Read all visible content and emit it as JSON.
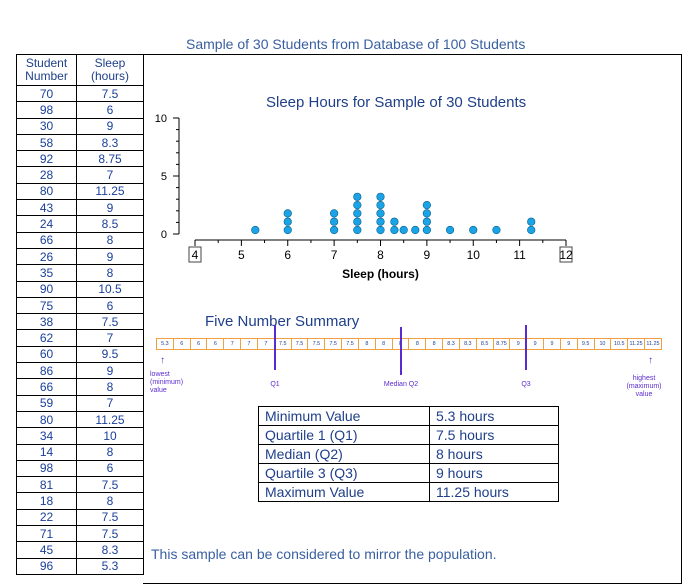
{
  "page_title": "Sample of 30 Students from Database of 100 Students",
  "student_table": {
    "headers": [
      "Student Number",
      "Sleep (hours)"
    ],
    "rows": [
      [
        "70",
        "7.5"
      ],
      [
        "98",
        "6"
      ],
      [
        "30",
        "9"
      ],
      [
        "58",
        "8.3"
      ],
      [
        "92",
        "8.75"
      ],
      [
        "28",
        "7"
      ],
      [
        "80",
        "11.25"
      ],
      [
        "43",
        "9"
      ],
      [
        "24",
        "8.5"
      ],
      [
        "66",
        "8"
      ],
      [
        "26",
        "9"
      ],
      [
        "35",
        "8"
      ],
      [
        "90",
        "10.5"
      ],
      [
        "75",
        "6"
      ],
      [
        "38",
        "7.5"
      ],
      [
        "62",
        "7"
      ],
      [
        "60",
        "9.5"
      ],
      [
        "86",
        "9"
      ],
      [
        "66",
        "8"
      ],
      [
        "59",
        "7"
      ],
      [
        "80",
        "11.25"
      ],
      [
        "34",
        "10"
      ],
      [
        "14",
        "8"
      ],
      [
        "98",
        "6"
      ],
      [
        "81",
        "7.5"
      ],
      [
        "18",
        "8"
      ],
      [
        "22",
        "7.5"
      ],
      [
        "71",
        "7.5"
      ],
      [
        "45",
        "8.3"
      ],
      [
        "96",
        "5.3"
      ]
    ]
  },
  "chart_data": {
    "type": "scatter",
    "subtype": "dot-plot",
    "title": "Sleep Hours for Sample of 30 Students",
    "xlabel": "Sleep (hours)",
    "ylabel": "",
    "xlim": [
      4,
      12
    ],
    "ylim": [
      0,
      10
    ],
    "x_ticks": [
      "4",
      "5",
      "6",
      "7",
      "8",
      "9",
      "10",
      "11",
      "12"
    ],
    "y_ticks": [
      "0",
      "5",
      "10"
    ],
    "dot_color": "#1aa3e6",
    "values": [
      5.3,
      6,
      6,
      6,
      7,
      7,
      7,
      7.5,
      7.5,
      7.5,
      7.5,
      7.5,
      8,
      8,
      8,
      8,
      8,
      8.3,
      8.3,
      8.5,
      8.75,
      9,
      9,
      9,
      9,
      9.5,
      10,
      10.5,
      11.25,
      11.25
    ]
  },
  "five_number_summary": {
    "title": "Five Number Summary",
    "ordered_values": [
      "5.3",
      "6",
      "6",
      "6",
      "7",
      "7",
      "7",
      "7.5",
      "7.5",
      "7.5",
      "7.5",
      "7.5",
      "8",
      "8",
      "8",
      "8",
      "8",
      "8.3",
      "8.3",
      "8.5",
      "8.75",
      "9",
      "9",
      "9",
      "9",
      "9.5",
      "10",
      "10.5",
      "11.25",
      "11.25"
    ],
    "markers": {
      "lowest": "lowest (minimum) value",
      "q1": "Q1",
      "median": "Median Q2",
      "q3": "Q3",
      "highest": "highest (maximum) value"
    },
    "marker_color": "#5a2bd0",
    "cell_border_color": "#f0a040"
  },
  "summary_table": [
    [
      "Minimum Value",
      "5.3 hours"
    ],
    [
      "Quartile 1 (Q1)",
      "7.5 hours"
    ],
    [
      "Median (Q2)",
      "8 hours"
    ],
    [
      "Quartile 3 (Q3)",
      "9 hours"
    ],
    [
      "Maximum Value",
      "11.25 hours"
    ]
  ],
  "note": "This sample can be considered to mirror the population."
}
